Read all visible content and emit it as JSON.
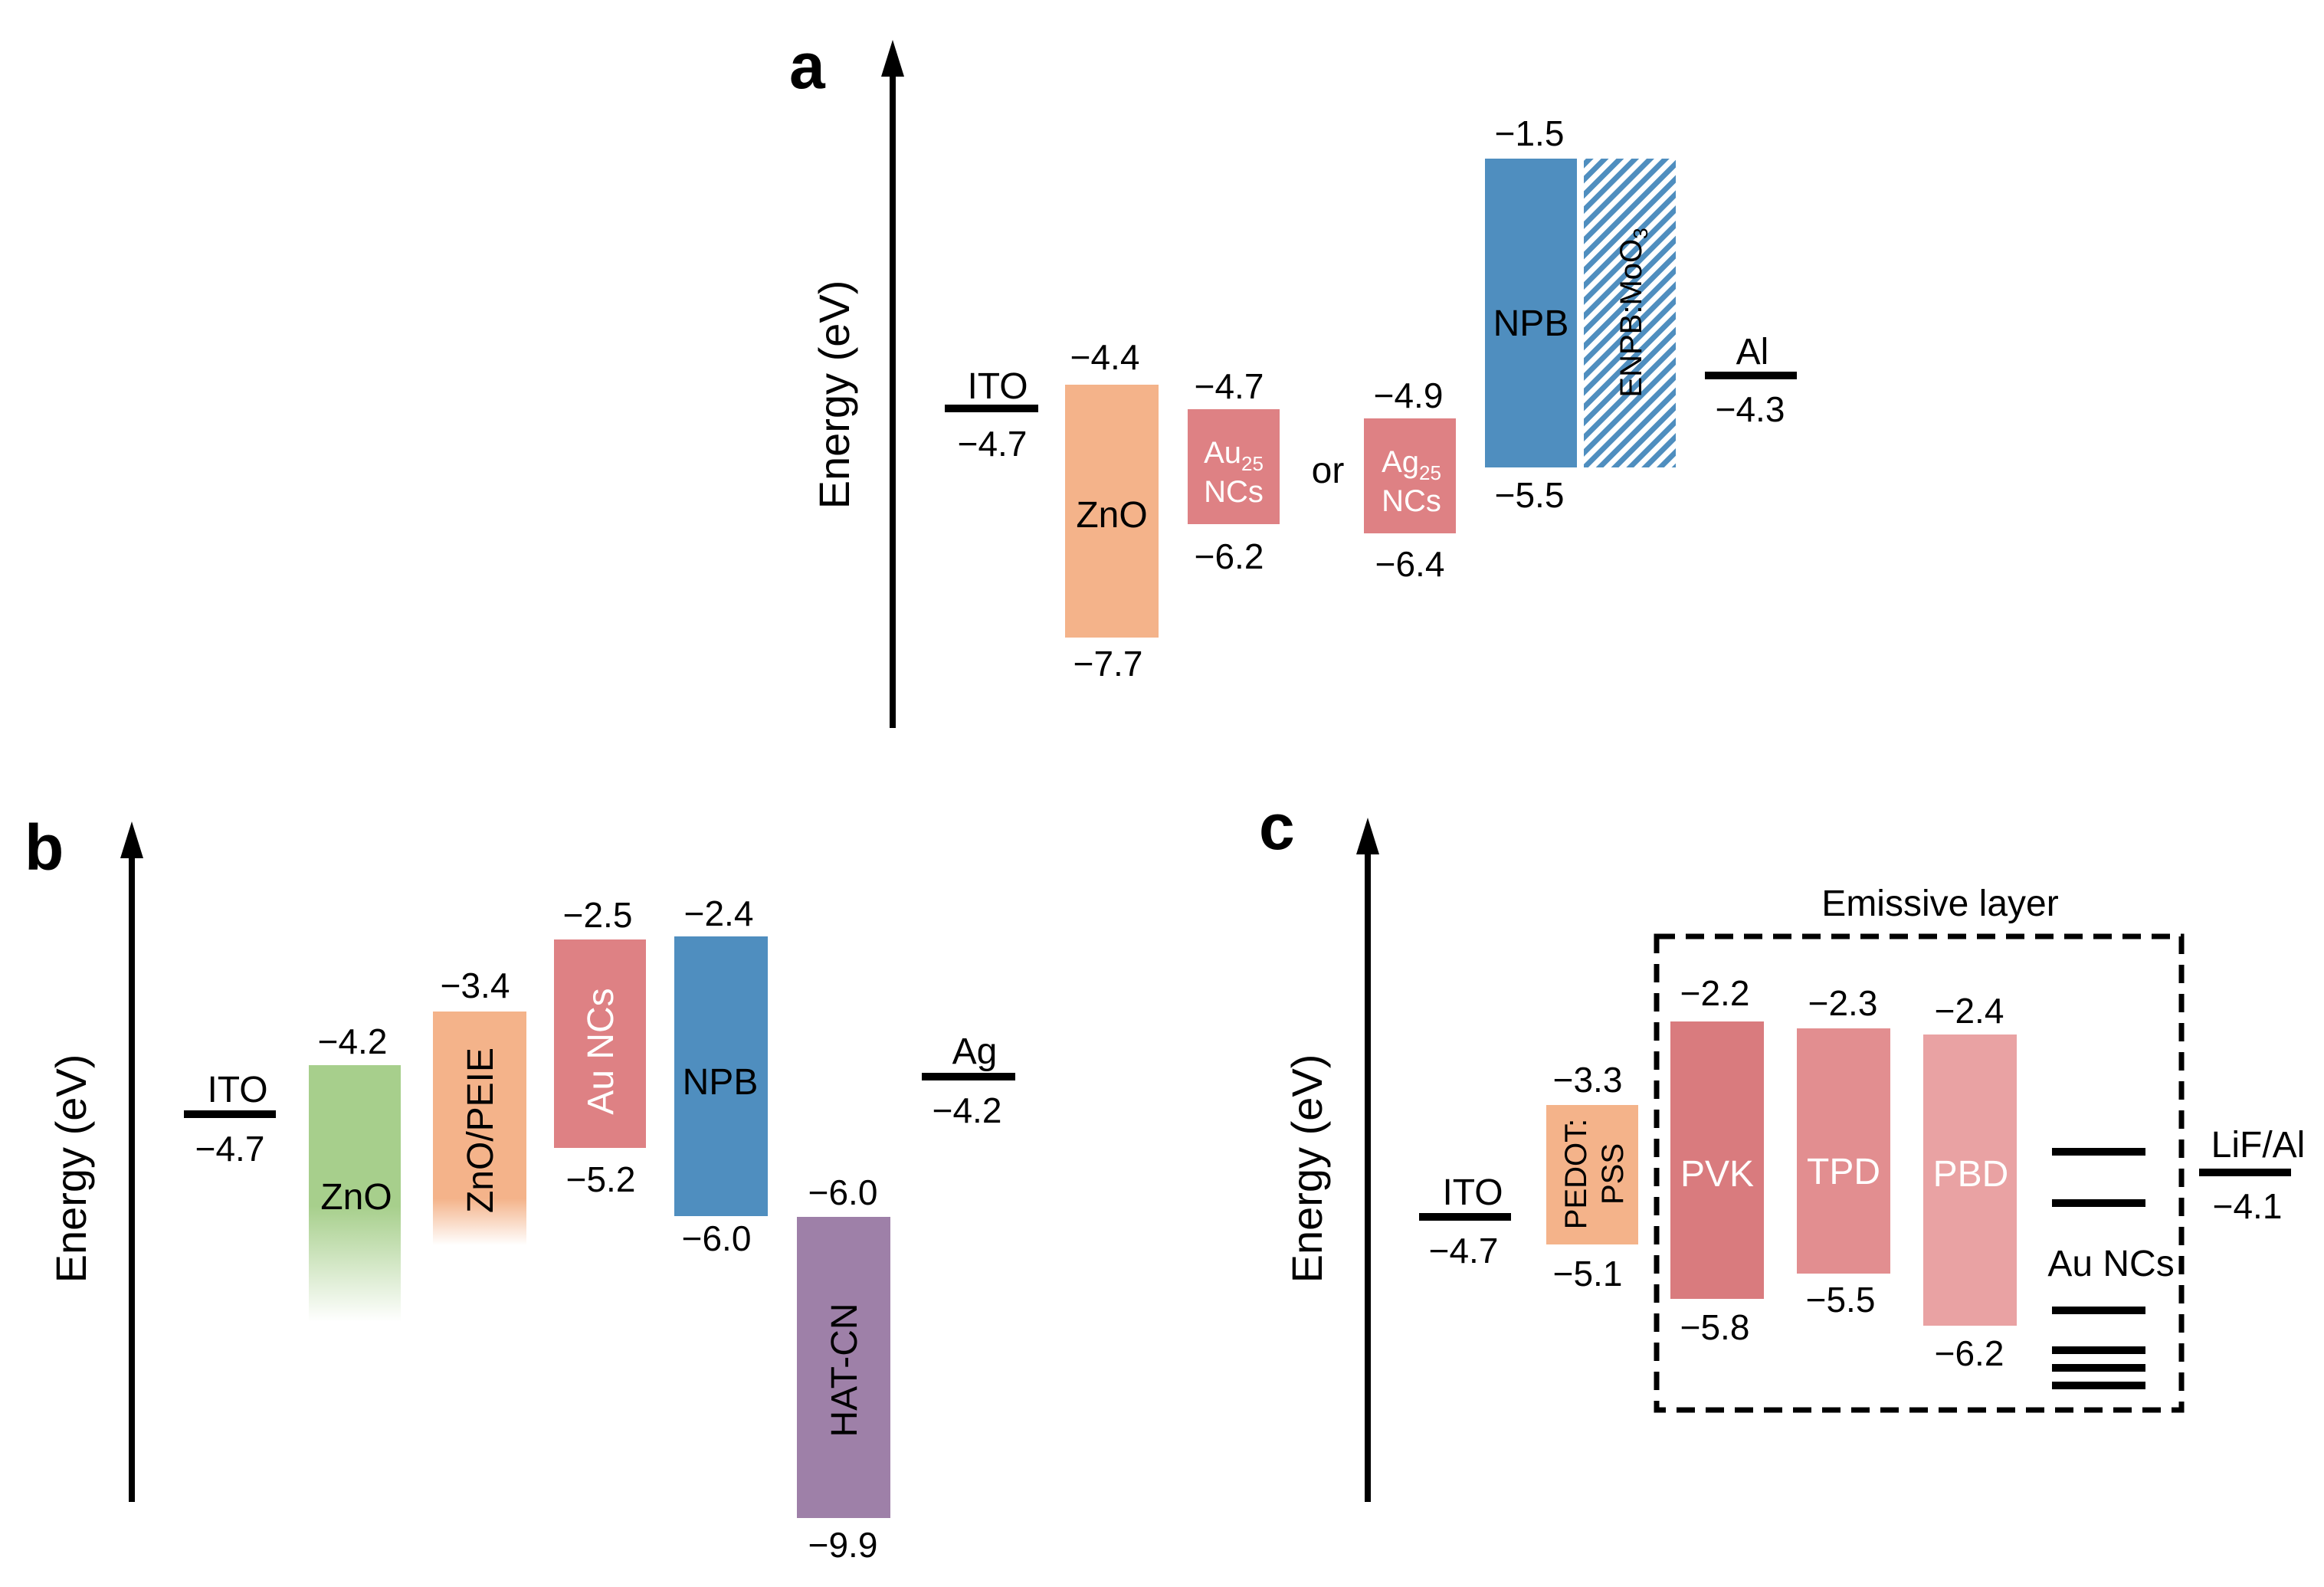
{
  "colors": {
    "ZnO": "#F4B38A",
    "NC": "#DE8184",
    "NPB": "#4F8EBF",
    "ZnO_green": "#A7CF8C",
    "HATCN": "#9E80A8",
    "PVK": "#D97B7E",
    "TPD": "#E28E90",
    "PBD": "#E9A2A3",
    "PEDOT": "#F4B38A",
    "hatch": "#4F8EBF"
  },
  "panel_a": {
    "letter": "a",
    "axis_label": "Energy (eV)",
    "or_text": "or",
    "electrodes": [
      {
        "name": "ITO",
        "value": "−4.7"
      },
      {
        "name": "Al",
        "value": "−4.3"
      }
    ],
    "layers": [
      {
        "id": "zno",
        "label": "ZnO",
        "top": "−4.4",
        "bottom": "−7.7"
      },
      {
        "id": "au25",
        "label_main": "Au",
        "label_sub": "25",
        "label_line2": "NCs",
        "top": "−4.7",
        "bottom": "−6.2"
      },
      {
        "id": "ag25",
        "label_main": "Ag",
        "label_sub": "25",
        "label_line2": "NCs",
        "top": "−4.9",
        "bottom": "−6.4"
      },
      {
        "id": "npb",
        "label": "NPB",
        "top": "−1.5",
        "bottom": "−5.5"
      },
      {
        "id": "enpb",
        "label_main": "ENPB:MoO",
        "label_sub": "3"
      }
    ]
  },
  "panel_b": {
    "letter": "b",
    "axis_label": "Energy (eV)",
    "electrodes": [
      {
        "name": "ITO",
        "value": "−4.7"
      },
      {
        "name": "Ag",
        "value": "−4.2"
      }
    ],
    "layers": [
      {
        "id": "zno",
        "label": "ZnO",
        "top": "−4.2"
      },
      {
        "id": "znopeie",
        "label": "ZnO/PEIE",
        "top": "−3.4"
      },
      {
        "id": "aunc",
        "label": "Au NCs",
        "top": "−2.5",
        "bottom": "−5.2"
      },
      {
        "id": "npb",
        "label": "NPB",
        "top": "−2.4",
        "bottom": "−6.0"
      },
      {
        "id": "hatcn",
        "label": "HAT-CN",
        "top": "−6.0",
        "bottom": "−9.9"
      }
    ]
  },
  "panel_c": {
    "letter": "c",
    "axis_label": "Energy (eV)",
    "emissive_label": "Emissive layer",
    "electrodes": [
      {
        "name": "ITO",
        "value": "−4.7"
      },
      {
        "name": "LiF/Al",
        "value": "−4.1"
      }
    ],
    "layers": [
      {
        "id": "pedot",
        "label_line1": "PEDOT:",
        "label_line2": "PSS",
        "top": "−3.3",
        "bottom": "−5.1"
      },
      {
        "id": "pvk",
        "label": "PVK",
        "top": "−2.2",
        "bottom": "−5.8"
      },
      {
        "id": "tpd",
        "label": "TPD",
        "top": "−2.3",
        "bottom": "−5.5"
      },
      {
        "id": "pbd",
        "label": "PBD",
        "top": "−2.4",
        "bottom": "−6.2"
      }
    ],
    "aunc_label": "Au NCs"
  }
}
